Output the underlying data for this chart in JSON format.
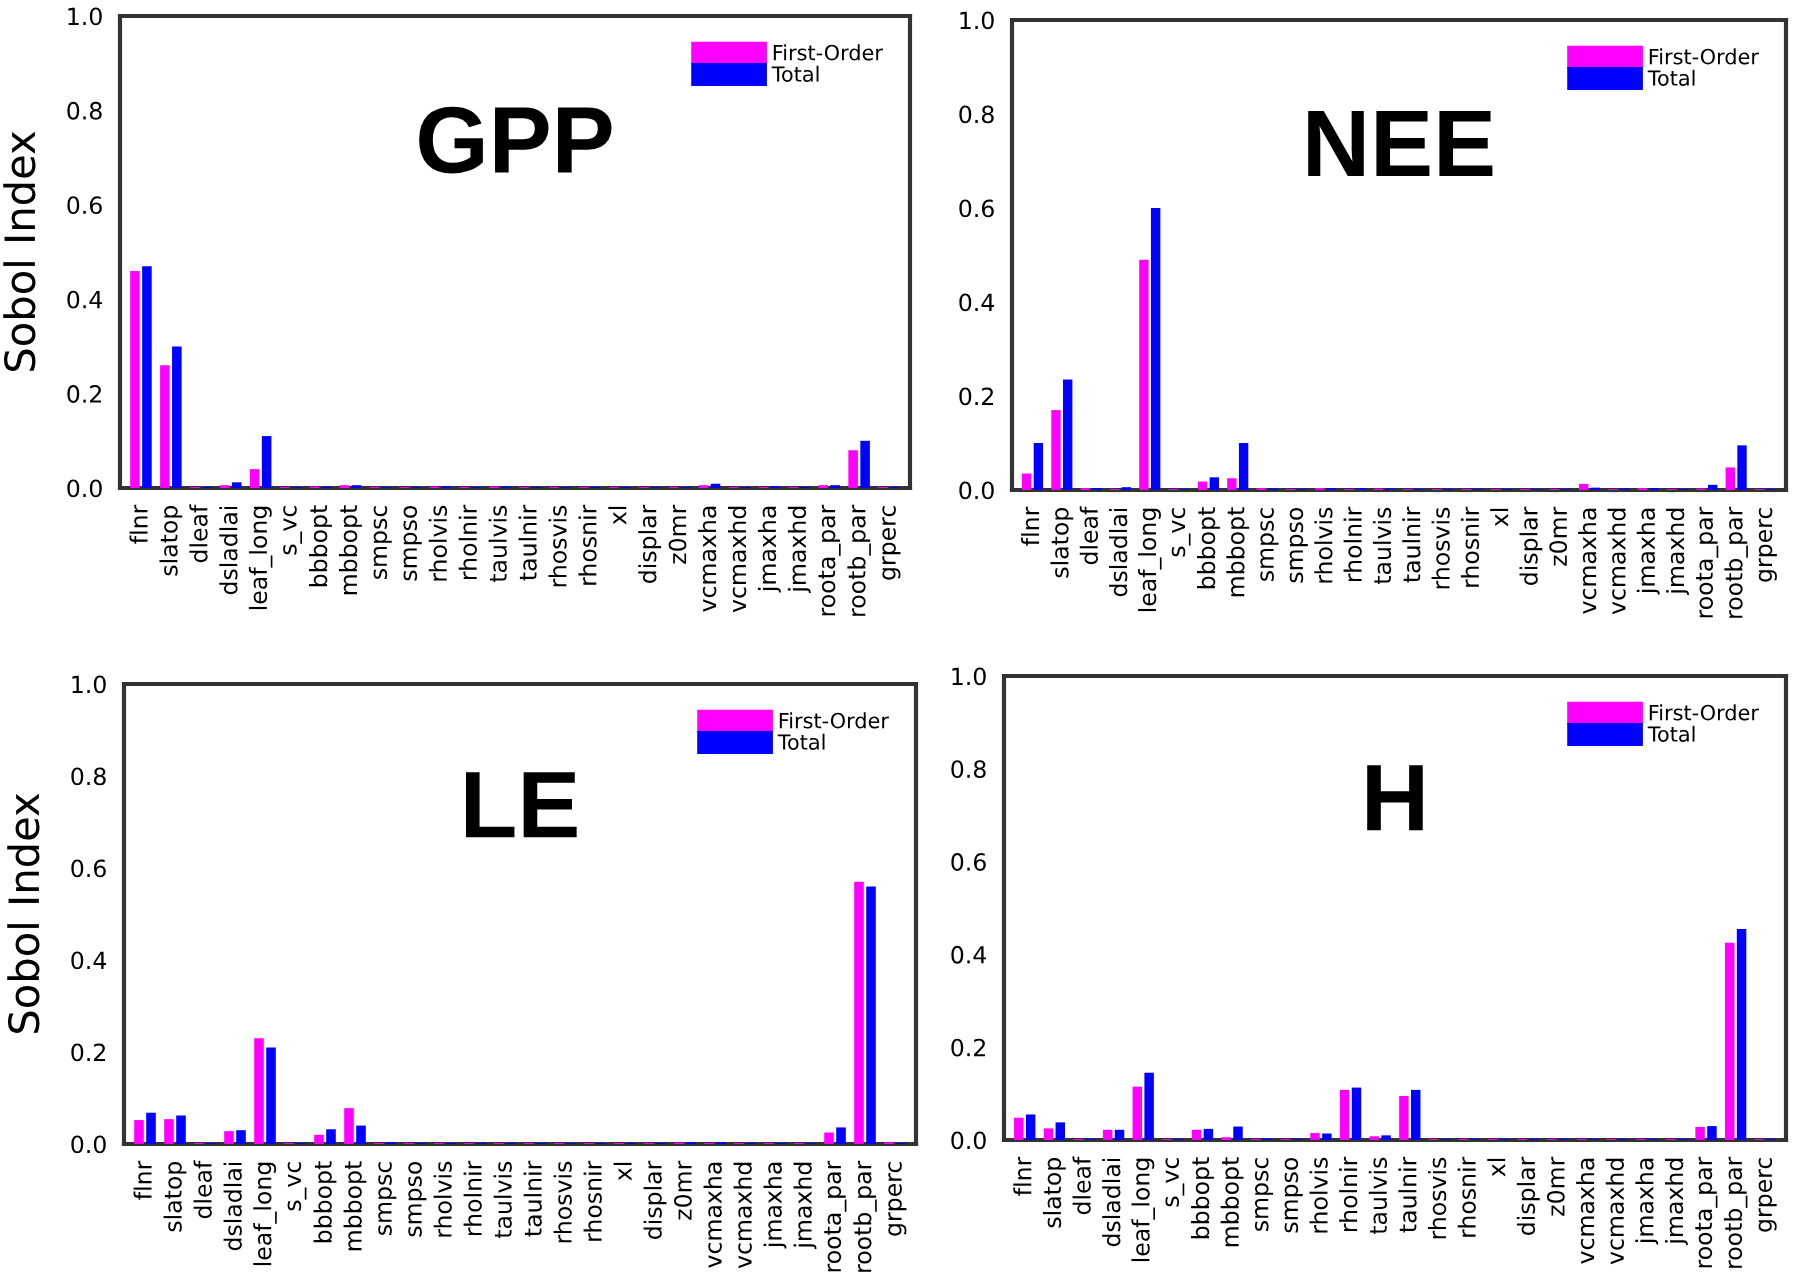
{
  "chart_data": [
    {
      "type": "bar",
      "title": "GPP",
      "ylabel": "Sobol Index",
      "ylim": [
        0,
        1.0
      ],
      "yticks": [
        {
          "value": 0,
          "label": "0.0"
        },
        {
          "value": 0.2,
          "label": "0.2"
        },
        {
          "value": 0.4,
          "label": "0.4"
        },
        {
          "value": 0.6,
          "label": "0.6"
        },
        {
          "value": 0.8,
          "label": "0.8"
        },
        {
          "value": 1.0,
          "label": "1.0"
        }
      ],
      "legend": "top right",
      "categories": [
        "flnr",
        "slatop",
        "dleaf",
        "dsladlai",
        "leaf_long",
        "s_vc",
        "bbbopt",
        "mbbopt",
        "smpsc",
        "smpso",
        "rholvis",
        "rholnir",
        "taulvis",
        "taulnir",
        "rhosvis",
        "rhosnir",
        "xl",
        "displar",
        "z0mr",
        "vcmaxha",
        "vcmaxhd",
        "jmaxha",
        "jmaxhd",
        "roota_par",
        "rootb_par",
        "grperc"
      ],
      "series": [
        {
          "name": "First-Order",
          "color": "#ff00ff",
          "values": [
            0.46,
            0.26,
            0.002,
            0.006,
            0.04,
            0.002,
            0.003,
            0.006,
            0.002,
            0.002,
            0.003,
            0.002,
            0.003,
            0.002,
            0.002,
            0.002,
            0.002,
            0.002,
            0.002,
            0.006,
            0.002,
            0.002,
            0.002,
            0.006,
            0.08,
            0.002
          ]
        },
        {
          "name": "Total",
          "color": "#0000ff",
          "values": [
            0.47,
            0.3,
            0.002,
            0.012,
            0.11,
            0.002,
            0.003,
            0.006,
            0.002,
            0.002,
            0.004,
            0.002,
            0.003,
            0.002,
            0.002,
            0.002,
            0.002,
            0.002,
            0.002,
            0.009,
            0.002,
            0.004,
            0.002,
            0.006,
            0.1,
            0.002
          ]
        }
      ]
    },
    {
      "type": "bar",
      "title": "NEE",
      "ylim": [
        0,
        1.0
      ],
      "yticks": [
        {
          "value": 0,
          "label": "0.0"
        },
        {
          "value": 0.2,
          "label": "0.2"
        },
        {
          "value": 0.4,
          "label": "0.4"
        },
        {
          "value": 0.6,
          "label": "0.6"
        },
        {
          "value": 0.8,
          "label": "0.8"
        },
        {
          "value": 1.0,
          "label": "1.0"
        }
      ],
      "legend": "top right",
      "categories": [
        "flnr",
        "slatop",
        "dleaf",
        "dsladlai",
        "leaf_long",
        "s_vc",
        "bbbopt",
        "mbbopt",
        "smpsc",
        "smpso",
        "rholvis",
        "rholnir",
        "taulvis",
        "taulnir",
        "rhosvis",
        "rhosnir",
        "xl",
        "displar",
        "z0mr",
        "vcmaxha",
        "vcmaxhd",
        "jmaxha",
        "jmaxhd",
        "roota_par",
        "rootb_par",
        "grperc"
      ],
      "series": [
        {
          "name": "First-Order",
          "color": "#ff00ff",
          "values": [
            0.035,
            0.17,
            0.004,
            0.002,
            0.49,
            0.002,
            0.018,
            0.025,
            0.004,
            0.002,
            0.004,
            0.002,
            0.003,
            0.002,
            0.002,
            0.002,
            0.002,
            0.002,
            0.002,
            0.013,
            0.002,
            0.004,
            0.002,
            0.003,
            0.048,
            0.002
          ]
        },
        {
          "name": "Total",
          "color": "#0000ff",
          "values": [
            0.1,
            0.235,
            0.004,
            0.006,
            0.6,
            0.002,
            0.027,
            0.1,
            0.003,
            0.002,
            0.004,
            0.004,
            0.003,
            0.002,
            0.002,
            0.002,
            0.002,
            0.002,
            0.002,
            0.005,
            0.003,
            0.004,
            0.002,
            0.011,
            0.095,
            0.002
          ]
        }
      ]
    },
    {
      "type": "bar",
      "title": "LE",
      "ylabel": "Sobol Index",
      "ylim": [
        0,
        1.0
      ],
      "yticks": [
        {
          "value": 0,
          "label": "0.0"
        },
        {
          "value": 0.2,
          "label": "0.2"
        },
        {
          "value": 0.4,
          "label": "0.4"
        },
        {
          "value": 0.6,
          "label": "0.6"
        },
        {
          "value": 0.8,
          "label": "0.8"
        },
        {
          "value": 1.0,
          "label": "1.0"
        }
      ],
      "legend": "top right",
      "categories": [
        "flnr",
        "slatop",
        "dleaf",
        "dsladlai",
        "leaf_long",
        "s_vc",
        "bbbopt",
        "mbbopt",
        "smpsc",
        "smpso",
        "rholvis",
        "rholnir",
        "taulvis",
        "taulnir",
        "rhosvis",
        "rhosnir",
        "xl",
        "displar",
        "z0mr",
        "vcmaxha",
        "vcmaxhd",
        "jmaxha",
        "jmaxhd",
        "roota_par",
        "rootb_par",
        "grperc"
      ],
      "series": [
        {
          "name": "First-Order",
          "color": "#ff00ff",
          "values": [
            0.052,
            0.054,
            0.002,
            0.028,
            0.23,
            0.002,
            0.02,
            0.078,
            0.002,
            0.002,
            0.002,
            0.002,
            0.002,
            0.002,
            0.002,
            0.002,
            0.002,
            0.002,
            0.003,
            0.002,
            0.002,
            0.002,
            0.002,
            0.025,
            0.57,
            0.004
          ]
        },
        {
          "name": "Total",
          "color": "#0000ff",
          "values": [
            0.068,
            0.062,
            0.002,
            0.03,
            0.21,
            0.002,
            0.032,
            0.04,
            0.004,
            0.002,
            0.002,
            0.002,
            0.002,
            0.002,
            0.002,
            0.002,
            0.002,
            0.002,
            0.004,
            0.004,
            0.002,
            0.002,
            0.002,
            0.036,
            0.56,
            0.002
          ]
        }
      ]
    },
    {
      "type": "bar",
      "title": "H",
      "ylim": [
        0,
        1.0
      ],
      "yticks": [
        {
          "value": 0,
          "label": "0.0"
        },
        {
          "value": 0.2,
          "label": "0.2"
        },
        {
          "value": 0.4,
          "label": "0.4"
        },
        {
          "value": 0.6,
          "label": "0.6"
        },
        {
          "value": 0.8,
          "label": "0.8"
        },
        {
          "value": 1.0,
          "label": "1.0"
        }
      ],
      "legend": "top right",
      "categories": [
        "flnr",
        "slatop",
        "dleaf",
        "dsladlai",
        "leaf_long",
        "s_vc",
        "bbbopt",
        "mbbopt",
        "smpsc",
        "smpso",
        "rholvis",
        "rholnir",
        "taulvis",
        "taulnir",
        "rhosvis",
        "rhosnir",
        "xl",
        "displar",
        "z0mr",
        "vcmaxha",
        "vcmaxhd",
        "jmaxha",
        "jmaxhd",
        "roota_par",
        "rootb_par",
        "grperc"
      ],
      "series": [
        {
          "name": "First-Order",
          "color": "#ff00ff",
          "values": [
            0.048,
            0.025,
            0.002,
            0.022,
            0.115,
            0.002,
            0.022,
            0.006,
            0.002,
            0.002,
            0.015,
            0.108,
            0.008,
            0.095,
            0.002,
            0.002,
            0.002,
            0.002,
            0.002,
            0.002,
            0.002,
            0.002,
            0.002,
            0.028,
            0.425,
            0.002
          ]
        },
        {
          "name": "Total",
          "color": "#0000ff",
          "values": [
            0.055,
            0.038,
            0.002,
            0.022,
            0.145,
            0.002,
            0.024,
            0.029,
            0.003,
            0.002,
            0.014,
            0.113,
            0.01,
            0.108,
            0.002,
            0.002,
            0.002,
            0.002,
            0.002,
            0.002,
            0.002,
            0.002,
            0.002,
            0.03,
            0.455,
            0.002
          ]
        }
      ]
    }
  ]
}
